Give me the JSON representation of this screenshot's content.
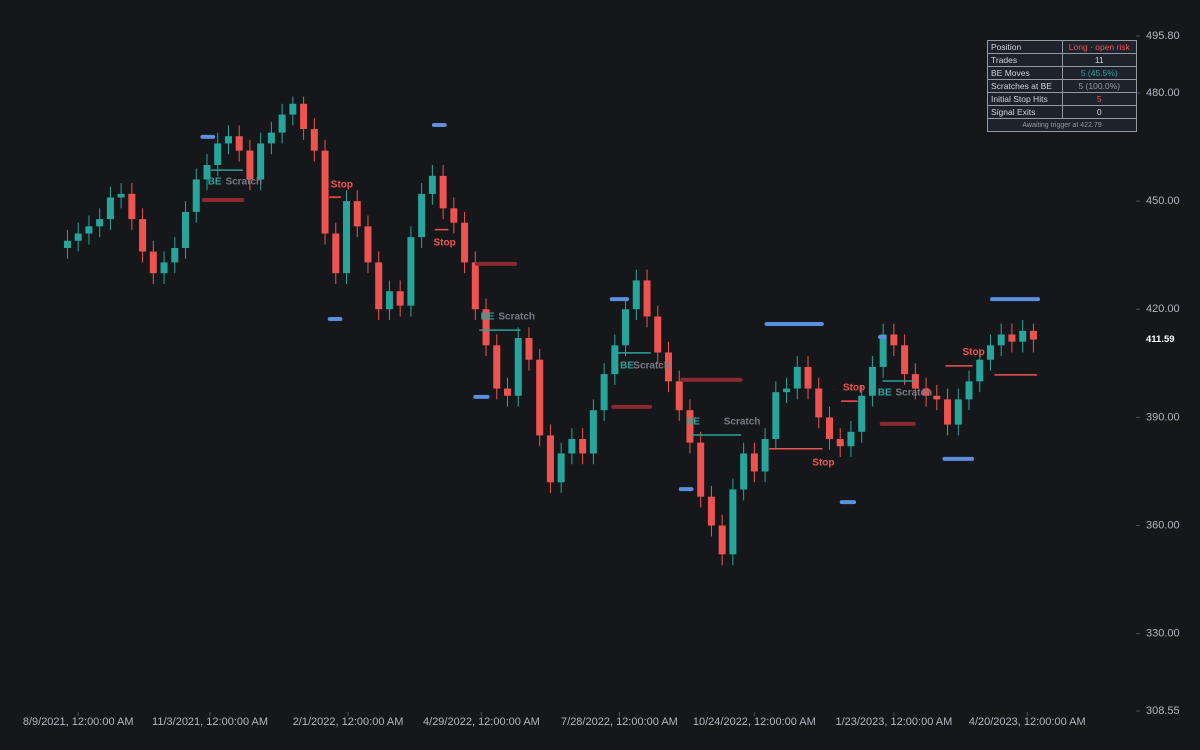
{
  "chart_data": {
    "type": "candlestick",
    "x": [
      "2021-08-02",
      "2021-08-09",
      "2021-08-16",
      "2021-08-23",
      "2021-08-30",
      "2021-09-06",
      "2021-09-13",
      "2021-09-20",
      "2021-09-27",
      "2021-10-04",
      "2021-10-11",
      "2021-10-18",
      "2021-10-25",
      "2021-11-01",
      "2021-11-08",
      "2021-11-15",
      "2021-11-22",
      "2021-11-29",
      "2021-12-06",
      "2021-12-13",
      "2021-12-20",
      "2021-12-27",
      "2022-01-03",
      "2022-01-10",
      "2022-01-17",
      "2022-01-24",
      "2022-01-31",
      "2022-02-07",
      "2022-02-14",
      "2022-02-21",
      "2022-02-28",
      "2022-03-07",
      "2022-03-14",
      "2022-03-21",
      "2022-03-28",
      "2022-04-04",
      "2022-04-11",
      "2022-04-18",
      "2022-04-25",
      "2022-05-02",
      "2022-05-09",
      "2022-05-16",
      "2022-05-23",
      "2022-05-30",
      "2022-06-06",
      "2022-06-13",
      "2022-06-20",
      "2022-06-27",
      "2022-07-04",
      "2022-07-11",
      "2022-07-18",
      "2022-07-25",
      "2022-08-01",
      "2022-08-08",
      "2022-08-15",
      "2022-08-22",
      "2022-08-29",
      "2022-09-05",
      "2022-09-12",
      "2022-09-19",
      "2022-09-26",
      "2022-10-03",
      "2022-10-10",
      "2022-10-17",
      "2022-10-24",
      "2022-10-31",
      "2022-11-07",
      "2022-11-14",
      "2022-11-21",
      "2022-11-28",
      "2022-12-05",
      "2022-12-12",
      "2022-12-19",
      "2022-12-26",
      "2023-01-02",
      "2023-01-09",
      "2023-01-16",
      "2023-01-23",
      "2023-01-30",
      "2023-02-06",
      "2023-02-13",
      "2023-02-20",
      "2023-02-27",
      "2023-03-06",
      "2023-03-13",
      "2023-03-20",
      "2023-03-27",
      "2023-04-03",
      "2023-04-10",
      "2023-04-17",
      "2023-04-24"
    ],
    "open": [
      437,
      439,
      441,
      443,
      445,
      451,
      452,
      445,
      436,
      430,
      433,
      437,
      447,
      456,
      460,
      466,
      468,
      464,
      456,
      466,
      469,
      474,
      477,
      470,
      464,
      441,
      430,
      450,
      443,
      433,
      420,
      425,
      421,
      440,
      452,
      457,
      448,
      444,
      433,
      420,
      410,
      398,
      396,
      412,
      406,
      385,
      372,
      380,
      384,
      380,
      392,
      402,
      410,
      420,
      428,
      418,
      408,
      400,
      392,
      383,
      368,
      360,
      352,
      370,
      380,
      375,
      384,
      397,
      398,
      404,
      398,
      390,
      384,
      382,
      386,
      396,
      404,
      413,
      410,
      402,
      398,
      396,
      395,
      388,
      395,
      400,
      406,
      410,
      413,
      411,
      414
    ],
    "high": [
      442,
      444,
      446,
      448,
      454,
      455,
      455,
      448,
      439,
      436,
      440,
      450,
      459,
      463,
      469,
      471,
      471,
      467,
      469,
      472,
      477,
      479,
      479,
      473,
      467,
      444,
      453,
      453,
      446,
      436,
      428,
      428,
      443,
      455,
      460,
      460,
      451,
      447,
      436,
      423,
      413,
      401,
      415,
      415,
      409,
      388,
      383,
      387,
      387,
      395,
      405,
      413,
      423,
      431,
      431,
      421,
      411,
      403,
      395,
      386,
      371,
      363,
      373,
      383,
      383,
      387,
      400,
      401,
      407,
      407,
      401,
      393,
      387,
      389,
      399,
      407,
      416,
      416,
      413,
      405,
      401,
      399,
      398,
      398,
      403,
      409,
      413,
      416,
      416,
      417,
      416
    ],
    "low": [
      434,
      436,
      438,
      440,
      442,
      448,
      442,
      433,
      427,
      427,
      430,
      434,
      444,
      453,
      457,
      463,
      461,
      453,
      453,
      463,
      466,
      471,
      467,
      461,
      438,
      427,
      427,
      440,
      430,
      417,
      417,
      418,
      418,
      437,
      449,
      445,
      441,
      430,
      417,
      407,
      395,
      393,
      393,
      403,
      382,
      369,
      369,
      377,
      377,
      377,
      389,
      399,
      407,
      417,
      415,
      405,
      397,
      389,
      380,
      365,
      357,
      349,
      349,
      367,
      372,
      372,
      381,
      394,
      395,
      395,
      387,
      381,
      379,
      379,
      383,
      393,
      401,
      407,
      399,
      395,
      393,
      392,
      385,
      385,
      392,
      397,
      403,
      407,
      408,
      408,
      408
    ],
    "close": [
      439,
      441,
      443,
      445,
      451,
      452,
      445,
      436,
      430,
      433,
      437,
      447,
      456,
      460,
      466,
      468,
      464,
      456,
      466,
      469,
      474,
      477,
      470,
      464,
      441,
      430,
      450,
      443,
      433,
      420,
      425,
      421,
      440,
      452,
      457,
      448,
      444,
      433,
      420,
      410,
      398,
      396,
      412,
      406,
      385,
      372,
      380,
      384,
      380,
      392,
      402,
      410,
      420,
      428,
      418,
      408,
      400,
      392,
      383,
      368,
      360,
      352,
      370,
      380,
      375,
      384,
      397,
      398,
      404,
      398,
      390,
      384,
      382,
      386,
      396,
      404,
      413,
      410,
      402,
      398,
      396,
      395,
      388,
      395,
      400,
      406,
      410,
      413,
      411,
      414,
      411.59
    ],
    "up_color": "#26a69a",
    "down_color": "#ef5350",
    "xlim": [
      "2021-06-19",
      "2023-06-26"
    ],
    "xticks": [
      {
        "value": "2021-08-09",
        "label": "8/9/2021, 12:00:00 AM"
      },
      {
        "value": "2021-11-03",
        "label": "11/3/2021, 12:00:00 AM"
      },
      {
        "value": "2022-02-01",
        "label": "2/1/2022, 12:00:00 AM"
      },
      {
        "value": "2022-04-29",
        "label": "4/29/2022, 12:00:00 AM"
      },
      {
        "value": "2022-07-28",
        "label": "7/28/2022, 12:00:00 AM"
      },
      {
        "value": "2022-10-24",
        "label": "10/24/2022, 12:00:00 AM"
      },
      {
        "value": "2023-01-23",
        "label": "1/23/2023, 12:00:00 AM"
      },
      {
        "value": "2023-04-20",
        "label": "4/20/2023, 12:00:00 AM"
      }
    ],
    "ylim": [
      308.55,
      495.8
    ],
    "yticks": [
      {
        "value": 308.55,
        "label": "308.55"
      },
      {
        "value": 330,
        "label": "330.00"
      },
      {
        "value": 360,
        "label": "360.00"
      },
      {
        "value": 390,
        "label": "390.00"
      },
      {
        "value": 420,
        "label": "420.00"
      },
      {
        "value": 450,
        "label": "450.00"
      },
      {
        "value": 480,
        "label": "480.00"
      },
      {
        "value": 495.8,
        "label": "495.80"
      }
    ],
    "level_styles": {
      "trigger": {
        "color": "#5b8fe0",
        "width": 4
      },
      "stop": {
        "color": "#8b2a2e",
        "width": 4
      },
      "entry": {
        "color": "#26a69a",
        "width": 1.5
      },
      "exit": {
        "color": "#ef5350",
        "width": 1.5
      }
    },
    "levels": [
      {
        "kind": "trigger",
        "start": "2021-10-29",
        "end": "2021-11-05",
        "price": 467.8
      },
      {
        "kind": "trigger",
        "start": "2022-01-20",
        "end": "2022-01-27",
        "price": 417.3
      },
      {
        "kind": "trigger",
        "start": "2022-03-29",
        "end": "2022-04-05",
        "price": 471.1
      },
      {
        "kind": "trigger",
        "start": "2022-04-25",
        "end": "2022-05-03",
        "price": 395.7
      },
      {
        "kind": "trigger",
        "start": "2022-07-23",
        "end": "2022-08-02",
        "price": 422.8
      },
      {
        "kind": "trigger",
        "start": "2022-09-06",
        "end": "2022-09-13",
        "price": 370.1
      },
      {
        "kind": "trigger",
        "start": "2022-11-01",
        "end": "2022-12-07",
        "price": 415.9
      },
      {
        "kind": "trigger",
        "start": "2022-12-20",
        "end": "2022-12-28",
        "price": 366.5
      },
      {
        "kind": "trigger",
        "start": "2023-01-14",
        "end": "2023-01-17",
        "price": 412.3
      },
      {
        "kind": "trigger",
        "start": "2023-02-25",
        "end": "2023-03-15",
        "price": 378.5
      },
      {
        "kind": "trigger",
        "start": "2023-03-28",
        "end": "2023-04-27",
        "price": 422.79
      },
      {
        "kind": "stop",
        "start": "2021-10-30",
        "end": "2021-11-24",
        "price": 450.3
      },
      {
        "kind": "stop",
        "start": "2022-04-26",
        "end": "2022-05-21",
        "price": 432.6
      },
      {
        "kind": "stop",
        "start": "2022-07-24",
        "end": "2022-08-17",
        "price": 392.9
      },
      {
        "kind": "stop",
        "start": "2022-09-07",
        "end": "2022-10-15",
        "price": 400.4
      },
      {
        "kind": "stop",
        "start": "2023-01-15",
        "end": "2023-02-05",
        "price": 388.2
      },
      {
        "kind": "entry",
        "start": "2021-11-04",
        "end": "2021-11-24",
        "price": 458.6
      },
      {
        "kind": "entry",
        "start": "2022-04-28",
        "end": "2022-05-24",
        "price": 414.2
      },
      {
        "kind": "entry",
        "start": "2022-07-25",
        "end": "2022-08-17",
        "price": 407.9
      },
      {
        "kind": "entry",
        "start": "2022-09-13",
        "end": "2022-10-15",
        "price": 385.1
      },
      {
        "kind": "entry",
        "start": "2023-01-16",
        "end": "2023-02-05",
        "price": 400.1
      },
      {
        "kind": "exit",
        "start": "2022-01-20",
        "end": "2022-01-27",
        "price": 451.1
      },
      {
        "kind": "exit",
        "start": "2022-03-30",
        "end": "2022-04-07",
        "price": 442.1
      },
      {
        "kind": "exit",
        "start": "2022-11-03",
        "end": "2022-12-07",
        "price": 381.3
      },
      {
        "kind": "exit",
        "start": "2022-12-20",
        "end": "2022-12-30",
        "price": 394.5
      },
      {
        "kind": "exit",
        "start": "2023-02-26",
        "end": "2023-03-15",
        "price": 404.3
      },
      {
        "kind": "exit",
        "start": "2023-03-30",
        "end": "2023-04-26",
        "price": 401.8
      }
    ],
    "annotations": [
      {
        "text": "BE",
        "date": "2021-11-06",
        "price": 455.3,
        "color": "#26a69a"
      },
      {
        "text": "Scratch",
        "date": "2021-11-25",
        "price": 455.3,
        "color": "#787b86"
      },
      {
        "text": "Stop",
        "date": "2022-01-28",
        "price": 454.5,
        "color": "#ef5350"
      },
      {
        "text": "Stop",
        "date": "2022-04-05",
        "price": 438.4,
        "color": "#ef5350"
      },
      {
        "text": "BE",
        "date": "2022-05-03",
        "price": 417.9,
        "color": "#26a69a"
      },
      {
        "text": "Scratch",
        "date": "2022-05-22",
        "price": 417.9,
        "color": "#787b86"
      },
      {
        "text": "BE",
        "date": "2022-08-02",
        "price": 404.3,
        "color": "#26a69a"
      },
      {
        "text": "Scratch",
        "date": "2022-08-18",
        "price": 404.3,
        "color": "#787b86"
      },
      {
        "text": "BE",
        "date": "2022-09-14",
        "price": 388.7,
        "color": "#26a69a"
      },
      {
        "text": "Scratch",
        "date": "2022-10-16",
        "price": 388.7,
        "color": "#787b86"
      },
      {
        "text": "Stop",
        "date": "2022-12-08",
        "price": 377.4,
        "color": "#ef5350"
      },
      {
        "text": "Stop",
        "date": "2022-12-28",
        "price": 398.2,
        "color": "#ef5350"
      },
      {
        "text": "BE",
        "date": "2023-01-17",
        "price": 396.8,
        "color": "#26a69a"
      },
      {
        "text": "Scratch",
        "date": "2023-02-05",
        "price": 396.8,
        "color": "#787b86"
      },
      {
        "text": "Stop",
        "date": "2023-03-16",
        "price": 408.1,
        "color": "#ef5350"
      }
    ],
    "stats": {
      "rows": [
        {
          "label": "Position",
          "value": "Long · open risk",
          "color": "#ef5350"
        },
        {
          "label": "Trades",
          "value": "11",
          "color": "#d1d4dc"
        },
        {
          "label": "BE Moves",
          "value": "5 (45.5%)",
          "color": "#26a69a"
        },
        {
          "label": "Scratches at BE",
          "value": "5 (100.0%)",
          "color": "#9598a1"
        },
        {
          "label": "Initial Stop Hits",
          "value": "5",
          "color": "#ef5350"
        },
        {
          "label": "Signal Exits",
          "value": "0",
          "color": "#d1d4dc"
        }
      ],
      "footer": "Awaiting trigger at 422.79"
    }
  }
}
